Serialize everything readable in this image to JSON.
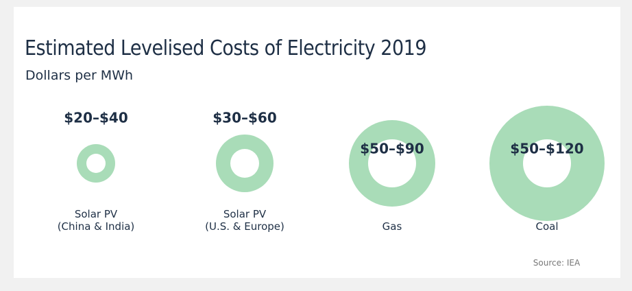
{
  "chart_data": {
    "type": "range-circle",
    "title": "Estimated Levelised Costs of Electricity 2019",
    "subtitle": "Dollars per MWh",
    "categories": [
      "Solar PV\n(China & India)",
      "Solar PV\n(U.S. & Europe)",
      "Gas",
      "Coal"
    ],
    "low": [
      20,
      30,
      50,
      50
    ],
    "high": [
      40,
      60,
      90,
      120
    ],
    "value_labels": [
      "$20–$40",
      "$30–$60",
      "$50–$90",
      "$50–$120"
    ],
    "color": "#a9dcb8",
    "annotation": "Source: IEA"
  }
}
